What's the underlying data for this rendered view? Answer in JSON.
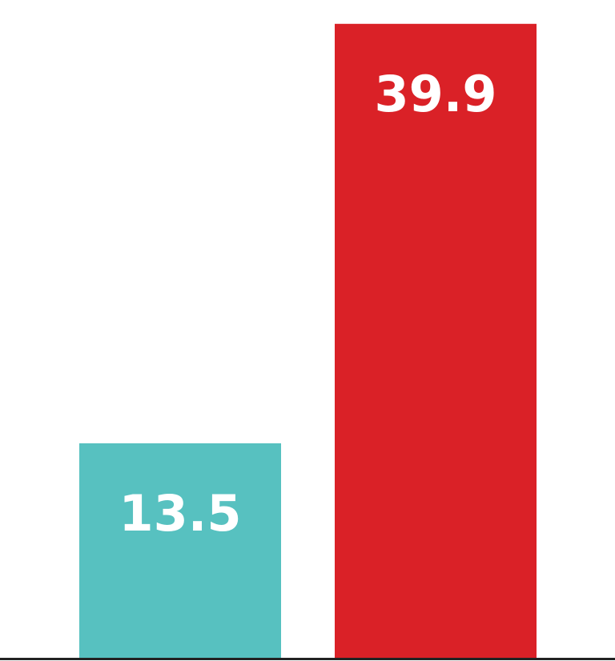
{
  "chart_data": {
    "type": "bar",
    "title": "",
    "xlabel": "",
    "ylabel": "",
    "categories": [
      "",
      ""
    ],
    "values": [
      13.5,
      39.9
    ],
    "value_labels": [
      "13.5",
      "39.9"
    ],
    "colors": [
      "#57C1C0",
      "#DA2127"
    ],
    "ylim": [
      0,
      41.4
    ],
    "grid": false,
    "legend": "none",
    "baseline_color": "#222222"
  }
}
